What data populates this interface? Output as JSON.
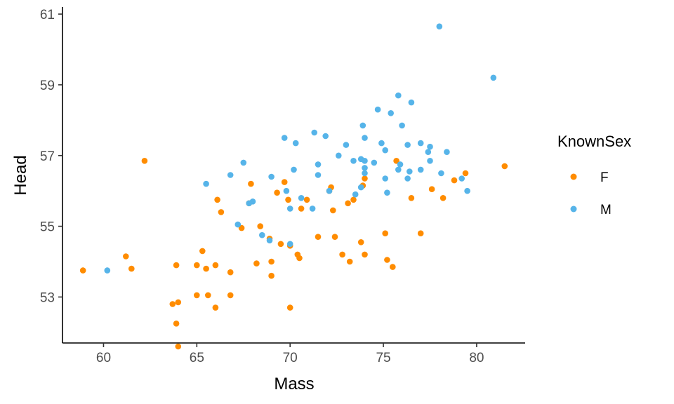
{
  "chart_data": {
    "type": "scatter",
    "title": "",
    "xlabel": "Mass",
    "ylabel": "Head",
    "xlim": [
      57.8,
      82.6
    ],
    "ylim": [
      51.7,
      61.2
    ],
    "xticks": [
      60,
      65,
      70,
      75,
      80
    ],
    "yticks": [
      53,
      55,
      57,
      59,
      61
    ],
    "grid": false,
    "legend": {
      "title": "KnownSex",
      "position": "right"
    },
    "series": [
      {
        "name": "F",
        "color": "#FF8C00",
        "points": [
          [
            58.9,
            53.75
          ],
          [
            61.2,
            54.15
          ],
          [
            61.5,
            53.8
          ],
          [
            62.2,
            56.85
          ],
          [
            63.7,
            52.8
          ],
          [
            63.9,
            52.25
          ],
          [
            64.0,
            52.85
          ],
          [
            64.0,
            51.6
          ],
          [
            63.9,
            53.9
          ],
          [
            65.0,
            53.9
          ],
          [
            65.0,
            53.05
          ],
          [
            65.3,
            54.3
          ],
          [
            65.5,
            53.8
          ],
          [
            65.6,
            53.05
          ],
          [
            66.0,
            53.9
          ],
          [
            66.0,
            52.7
          ],
          [
            66.1,
            55.75
          ],
          [
            66.3,
            55.4
          ],
          [
            66.8,
            53.05
          ],
          [
            66.8,
            53.7
          ],
          [
            67.4,
            54.95
          ],
          [
            67.8,
            55.65
          ],
          [
            67.9,
            56.2
          ],
          [
            68.2,
            53.95
          ],
          [
            68.4,
            55.0
          ],
          [
            68.9,
            54.65
          ],
          [
            69.0,
            54.0
          ],
          [
            69.0,
            53.6
          ],
          [
            69.3,
            55.95
          ],
          [
            69.5,
            54.5
          ],
          [
            69.7,
            56.25
          ],
          [
            69.9,
            55.75
          ],
          [
            70.0,
            54.45
          ],
          [
            70.0,
            52.7
          ],
          [
            70.4,
            54.2
          ],
          [
            70.5,
            54.1
          ],
          [
            70.6,
            55.5
          ],
          [
            70.9,
            55.75
          ],
          [
            71.5,
            54.7
          ],
          [
            72.1,
            56.0
          ],
          [
            72.2,
            56.1
          ],
          [
            72.3,
            55.45
          ],
          [
            72.4,
            54.7
          ],
          [
            72.8,
            54.2
          ],
          [
            73.1,
            55.65
          ],
          [
            73.2,
            54.0
          ],
          [
            73.4,
            55.75
          ],
          [
            73.8,
            54.55
          ],
          [
            73.9,
            56.15
          ],
          [
            74.0,
            56.35
          ],
          [
            74.0,
            54.2
          ],
          [
            75.1,
            54.8
          ],
          [
            75.2,
            54.05
          ],
          [
            75.5,
            53.85
          ],
          [
            75.7,
            56.85
          ],
          [
            76.5,
            55.8
          ],
          [
            77.0,
            54.8
          ],
          [
            77.6,
            56.05
          ],
          [
            78.2,
            55.8
          ],
          [
            78.8,
            56.3
          ],
          [
            79.4,
            56.5
          ],
          [
            81.5,
            56.7
          ]
        ]
      },
      {
        "name": "M",
        "color": "#56B4E9",
        "points": [
          [
            60.2,
            53.75
          ],
          [
            65.5,
            56.2
          ],
          [
            66.8,
            56.45
          ],
          [
            67.2,
            55.05
          ],
          [
            67.5,
            56.8
          ],
          [
            67.8,
            55.65
          ],
          [
            68.0,
            55.7
          ],
          [
            68.5,
            54.75
          ],
          [
            68.9,
            54.6
          ],
          [
            69.0,
            56.4
          ],
          [
            69.7,
            57.5
          ],
          [
            69.8,
            56.0
          ],
          [
            70.0,
            54.5
          ],
          [
            70.0,
            55.5
          ],
          [
            70.2,
            56.6
          ],
          [
            70.3,
            57.35
          ],
          [
            70.6,
            55.8
          ],
          [
            71.2,
            55.5
          ],
          [
            71.3,
            57.65
          ],
          [
            71.5,
            56.45
          ],
          [
            71.5,
            56.75
          ],
          [
            71.9,
            57.55
          ],
          [
            72.1,
            56.0
          ],
          [
            72.6,
            57.0
          ],
          [
            73.0,
            57.3
          ],
          [
            73.4,
            56.85
          ],
          [
            73.5,
            55.9
          ],
          [
            73.8,
            56.9
          ],
          [
            73.8,
            56.1
          ],
          [
            73.9,
            57.85
          ],
          [
            74.0,
            56.85
          ],
          [
            74.0,
            56.65
          ],
          [
            74.0,
            56.5
          ],
          [
            74.0,
            57.5
          ],
          [
            74.5,
            56.8
          ],
          [
            74.7,
            58.3
          ],
          [
            74.9,
            57.35
          ],
          [
            75.1,
            56.35
          ],
          [
            75.1,
            57.15
          ],
          [
            75.2,
            55.95
          ],
          [
            75.4,
            58.2
          ],
          [
            75.8,
            58.7
          ],
          [
            75.8,
            56.6
          ],
          [
            75.9,
            56.75
          ],
          [
            76.0,
            57.85
          ],
          [
            76.3,
            56.35
          ],
          [
            76.3,
            57.3
          ],
          [
            76.4,
            56.55
          ],
          [
            76.5,
            58.5
          ],
          [
            77.0,
            56.6
          ],
          [
            77.0,
            57.35
          ],
          [
            77.4,
            57.1
          ],
          [
            77.5,
            57.25
          ],
          [
            77.5,
            56.85
          ],
          [
            78.0,
            60.65
          ],
          [
            78.1,
            56.5
          ],
          [
            78.4,
            57.1
          ],
          [
            79.2,
            56.35
          ],
          [
            79.5,
            56.0
          ],
          [
            80.9,
            59.2
          ]
        ]
      }
    ]
  }
}
